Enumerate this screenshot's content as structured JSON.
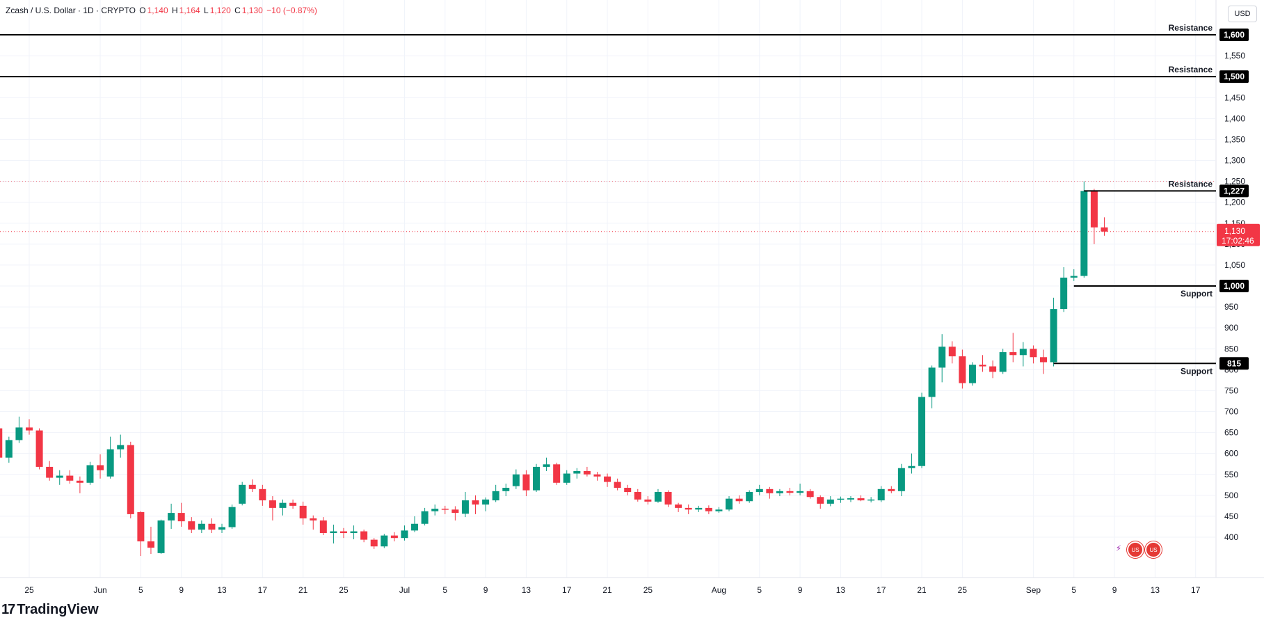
{
  "header": {
    "symbol": "Zcash / U.S. Dollar · 1D · CRYPTO",
    "open_label": "O",
    "open": "1,140",
    "high_label": "H",
    "high": "1,164",
    "low_label": "L",
    "low": "1,120",
    "close_label": "C",
    "close": "1,130",
    "change": "−10 (−0.87%)",
    "currency": "USD"
  },
  "brand": {
    "mark": "17",
    "name": "TradingView"
  },
  "events": [
    {
      "icon": "lightning-icon",
      "kind": "earnings"
    },
    {
      "icon": "us-flag-icon",
      "kind": "economic"
    },
    {
      "icon": "us-flag-icon",
      "kind": "economic"
    }
  ],
  "colors": {
    "up": "#089981",
    "down": "#f23645",
    "grid": "#f0f3fa",
    "text": "#131722",
    "price_line": "#f23645",
    "level_line": "#000000"
  },
  "chart_data": {
    "type": "candlestick",
    "title": "Zcash / U.S. Dollar · 1D · CRYPTO",
    "ylim": [
      360,
      1660
    ],
    "y_ticks": [
      400,
      450,
      500,
      550,
      600,
      650,
      700,
      750,
      800,
      850,
      900,
      950,
      1000,
      1050,
      1100,
      1150,
      1200,
      1250,
      1300,
      1350,
      1400,
      1450,
      1500,
      1550,
      1600
    ],
    "x_ticks": [
      {
        "label": "25",
        "date": "2025-05-25"
      },
      {
        "label": "Jun",
        "date": "2025-06-01"
      },
      {
        "label": "5",
        "date": "2025-06-05"
      },
      {
        "label": "9",
        "date": "2025-06-09"
      },
      {
        "label": "13",
        "date": "2025-06-13"
      },
      {
        "label": "17",
        "date": "2025-06-17"
      },
      {
        "label": "21",
        "date": "2025-06-21"
      },
      {
        "label": "25",
        "date": "2025-06-25"
      },
      {
        "label": "Jul",
        "date": "2025-07-01"
      },
      {
        "label": "5",
        "date": "2025-07-05"
      },
      {
        "label": "9",
        "date": "2025-07-09"
      },
      {
        "label": "13",
        "date": "2025-07-13"
      },
      {
        "label": "17",
        "date": "2025-07-17"
      },
      {
        "label": "21",
        "date": "2025-07-21"
      },
      {
        "label": "25",
        "date": "2025-07-25"
      },
      {
        "label": "Aug",
        "date": "2025-08-01"
      },
      {
        "label": "5",
        "date": "2025-08-05"
      },
      {
        "label": "9",
        "date": "2025-08-09"
      },
      {
        "label": "13",
        "date": "2025-08-13"
      },
      {
        "label": "17",
        "date": "2025-08-17"
      },
      {
        "label": "21",
        "date": "2025-08-21"
      },
      {
        "label": "25",
        "date": "2025-08-25"
      },
      {
        "label": "Sep",
        "date": "2025-09-01"
      },
      {
        "label": "5",
        "date": "2025-09-05"
      },
      {
        "label": "9",
        "date": "2025-09-09"
      },
      {
        "label": "13",
        "date": "2025-09-13"
      },
      {
        "label": "17",
        "date": "2025-09-17"
      }
    ],
    "candles": [
      {
        "date": "2025-05-22",
        "o": 660,
        "h": 668,
        "l": 585,
        "c": 590
      },
      {
        "date": "2025-05-23",
        "o": 590,
        "h": 640,
        "l": 578,
        "c": 632
      },
      {
        "date": "2025-05-24",
        "o": 632,
        "h": 688,
        "l": 625,
        "c": 662
      },
      {
        "date": "2025-05-25",
        "o": 662,
        "h": 682,
        "l": 645,
        "c": 655
      },
      {
        "date": "2025-05-26",
        "o": 655,
        "h": 660,
        "l": 562,
        "c": 568
      },
      {
        "date": "2025-05-27",
        "o": 568,
        "h": 582,
        "l": 535,
        "c": 542
      },
      {
        "date": "2025-05-28",
        "o": 542,
        "h": 560,
        "l": 525,
        "c": 547
      },
      {
        "date": "2025-05-29",
        "o": 547,
        "h": 560,
        "l": 528,
        "c": 535
      },
      {
        "date": "2025-05-30",
        "o": 535,
        "h": 545,
        "l": 505,
        "c": 530
      },
      {
        "date": "2025-05-31",
        "o": 530,
        "h": 580,
        "l": 525,
        "c": 572
      },
      {
        "date": "2025-06-01",
        "o": 572,
        "h": 598,
        "l": 540,
        "c": 560
      },
      {
        "date": "2025-06-02",
        "o": 545,
        "h": 640,
        "l": 540,
        "c": 610
      },
      {
        "date": "2025-06-03",
        "o": 610,
        "h": 645,
        "l": 590,
        "c": 620
      },
      {
        "date": "2025-06-04",
        "o": 620,
        "h": 628,
        "l": 445,
        "c": 455
      },
      {
        "date": "2025-06-05",
        "o": 460,
        "h": 462,
        "l": 355,
        "c": 390
      },
      {
        "date": "2025-06-06",
        "o": 390,
        "h": 425,
        "l": 360,
        "c": 375
      },
      {
        "date": "2025-06-07",
        "o": 362,
        "h": 442,
        "l": 360,
        "c": 440
      },
      {
        "date": "2025-06-08",
        "o": 440,
        "h": 480,
        "l": 420,
        "c": 458
      },
      {
        "date": "2025-06-09",
        "o": 458,
        "h": 482,
        "l": 425,
        "c": 438
      },
      {
        "date": "2025-06-10",
        "o": 438,
        "h": 448,
        "l": 410,
        "c": 418
      },
      {
        "date": "2025-06-11",
        "o": 418,
        "h": 440,
        "l": 410,
        "c": 432
      },
      {
        "date": "2025-06-12",
        "o": 432,
        "h": 445,
        "l": 410,
        "c": 418
      },
      {
        "date": "2025-06-13",
        "o": 418,
        "h": 432,
        "l": 410,
        "c": 424
      },
      {
        "date": "2025-06-14",
        "o": 424,
        "h": 478,
        "l": 420,
        "c": 472
      },
      {
        "date": "2025-06-15",
        "o": 480,
        "h": 532,
        "l": 476,
        "c": 525
      },
      {
        "date": "2025-06-16",
        "o": 525,
        "h": 538,
        "l": 508,
        "c": 515
      },
      {
        "date": "2025-06-17",
        "o": 515,
        "h": 525,
        "l": 475,
        "c": 488
      },
      {
        "date": "2025-06-18",
        "o": 488,
        "h": 498,
        "l": 440,
        "c": 470
      },
      {
        "date": "2025-06-19",
        "o": 470,
        "h": 490,
        "l": 452,
        "c": 482
      },
      {
        "date": "2025-06-20",
        "o": 482,
        "h": 490,
        "l": 468,
        "c": 475
      },
      {
        "date": "2025-06-21",
        "o": 475,
        "h": 485,
        "l": 430,
        "c": 445
      },
      {
        "date": "2025-06-22",
        "o": 445,
        "h": 452,
        "l": 418,
        "c": 440
      },
      {
        "date": "2025-06-23",
        "o": 440,
        "h": 448,
        "l": 405,
        "c": 410
      },
      {
        "date": "2025-06-24",
        "o": 410,
        "h": 430,
        "l": 385,
        "c": 414
      },
      {
        "date": "2025-06-25",
        "o": 414,
        "h": 422,
        "l": 398,
        "c": 410
      },
      {
        "date": "2025-06-26",
        "o": 410,
        "h": 428,
        "l": 395,
        "c": 414
      },
      {
        "date": "2025-06-27",
        "o": 414,
        "h": 418,
        "l": 388,
        "c": 394
      },
      {
        "date": "2025-06-28",
        "o": 394,
        "h": 398,
        "l": 372,
        "c": 378
      },
      {
        "date": "2025-06-29",
        "o": 378,
        "h": 408,
        "l": 374,
        "c": 404
      },
      {
        "date": "2025-06-30",
        "o": 404,
        "h": 412,
        "l": 390,
        "c": 398
      },
      {
        "date": "2025-07-01",
        "o": 398,
        "h": 428,
        "l": 392,
        "c": 416
      },
      {
        "date": "2025-07-02",
        "o": 416,
        "h": 450,
        "l": 412,
        "c": 432
      },
      {
        "date": "2025-07-03",
        "o": 432,
        "h": 470,
        "l": 428,
        "c": 462
      },
      {
        "date": "2025-07-04",
        "o": 462,
        "h": 478,
        "l": 452,
        "c": 468
      },
      {
        "date": "2025-07-05",
        "o": 468,
        "h": 475,
        "l": 455,
        "c": 466
      },
      {
        "date": "2025-07-06",
        "o": 466,
        "h": 474,
        "l": 440,
        "c": 458
      },
      {
        "date": "2025-07-07",
        "o": 456,
        "h": 508,
        "l": 448,
        "c": 488
      },
      {
        "date": "2025-07-08",
        "o": 488,
        "h": 500,
        "l": 455,
        "c": 478
      },
      {
        "date": "2025-07-09",
        "o": 478,
        "h": 495,
        "l": 462,
        "c": 490
      },
      {
        "date": "2025-07-10",
        "o": 488,
        "h": 525,
        "l": 484,
        "c": 510
      },
      {
        "date": "2025-07-11",
        "o": 510,
        "h": 528,
        "l": 498,
        "c": 518
      },
      {
        "date": "2025-07-12",
        "o": 522,
        "h": 562,
        "l": 515,
        "c": 550
      },
      {
        "date": "2025-07-13",
        "o": 550,
        "h": 560,
        "l": 498,
        "c": 512
      },
      {
        "date": "2025-07-14",
        "o": 512,
        "h": 575,
        "l": 508,
        "c": 568
      },
      {
        "date": "2025-07-15",
        "o": 568,
        "h": 590,
        "l": 558,
        "c": 574
      },
      {
        "date": "2025-07-16",
        "o": 574,
        "h": 578,
        "l": 525,
        "c": 530
      },
      {
        "date": "2025-07-17",
        "o": 530,
        "h": 560,
        "l": 525,
        "c": 552
      },
      {
        "date": "2025-07-18",
        "o": 552,
        "h": 565,
        "l": 540,
        "c": 558
      },
      {
        "date": "2025-07-19",
        "o": 558,
        "h": 568,
        "l": 545,
        "c": 550
      },
      {
        "date": "2025-07-20",
        "o": 550,
        "h": 556,
        "l": 535,
        "c": 545
      },
      {
        "date": "2025-07-21",
        "o": 545,
        "h": 552,
        "l": 520,
        "c": 532
      },
      {
        "date": "2025-07-22",
        "o": 532,
        "h": 540,
        "l": 512,
        "c": 518
      },
      {
        "date": "2025-07-23",
        "o": 518,
        "h": 525,
        "l": 500,
        "c": 508
      },
      {
        "date": "2025-07-24",
        "o": 508,
        "h": 515,
        "l": 485,
        "c": 490
      },
      {
        "date": "2025-07-25",
        "o": 490,
        "h": 498,
        "l": 478,
        "c": 485
      },
      {
        "date": "2025-07-26",
        "o": 485,
        "h": 515,
        "l": 482,
        "c": 508
      },
      {
        "date": "2025-07-27",
        "o": 508,
        "h": 512,
        "l": 472,
        "c": 478
      },
      {
        "date": "2025-07-28",
        "o": 478,
        "h": 482,
        "l": 460,
        "c": 470
      },
      {
        "date": "2025-07-29",
        "o": 470,
        "h": 478,
        "l": 455,
        "c": 466
      },
      {
        "date": "2025-07-30",
        "o": 466,
        "h": 475,
        "l": 460,
        "c": 470
      },
      {
        "date": "2025-07-31",
        "o": 470,
        "h": 476,
        "l": 455,
        "c": 462
      },
      {
        "date": "2025-08-01",
        "o": 462,
        "h": 472,
        "l": 458,
        "c": 466
      },
      {
        "date": "2025-08-02",
        "o": 466,
        "h": 498,
        "l": 462,
        "c": 492
      },
      {
        "date": "2025-08-03",
        "o": 492,
        "h": 500,
        "l": 480,
        "c": 486
      },
      {
        "date": "2025-08-04",
        "o": 486,
        "h": 512,
        "l": 482,
        "c": 508
      },
      {
        "date": "2025-08-05",
        "o": 508,
        "h": 525,
        "l": 500,
        "c": 515
      },
      {
        "date": "2025-08-06",
        "o": 515,
        "h": 520,
        "l": 492,
        "c": 505
      },
      {
        "date": "2025-08-07",
        "o": 505,
        "h": 515,
        "l": 498,
        "c": 510
      },
      {
        "date": "2025-08-08",
        "o": 510,
        "h": 518,
        "l": 500,
        "c": 506
      },
      {
        "date": "2025-08-09",
        "o": 506,
        "h": 528,
        "l": 500,
        "c": 510
      },
      {
        "date": "2025-08-10",
        "o": 510,
        "h": 515,
        "l": 492,
        "c": 496
      },
      {
        "date": "2025-08-11",
        "o": 496,
        "h": 500,
        "l": 468,
        "c": 480
      },
      {
        "date": "2025-08-12",
        "o": 480,
        "h": 498,
        "l": 474,
        "c": 490
      },
      {
        "date": "2025-08-13",
        "o": 490,
        "h": 497,
        "l": 482,
        "c": 492
      },
      {
        "date": "2025-08-14",
        "o": 490,
        "h": 498,
        "l": 484,
        "c": 493
      },
      {
        "date": "2025-08-15",
        "o": 493,
        "h": 500,
        "l": 486,
        "c": 488
      },
      {
        "date": "2025-08-16",
        "o": 488,
        "h": 496,
        "l": 483,
        "c": 490
      },
      {
        "date": "2025-08-17",
        "o": 488,
        "h": 522,
        "l": 484,
        "c": 515
      },
      {
        "date": "2025-08-18",
        "o": 515,
        "h": 522,
        "l": 505,
        "c": 510
      },
      {
        "date": "2025-08-19",
        "o": 510,
        "h": 575,
        "l": 498,
        "c": 565
      },
      {
        "date": "2025-08-20",
        "o": 565,
        "h": 600,
        "l": 552,
        "c": 570
      },
      {
        "date": "2025-08-21",
        "o": 570,
        "h": 745,
        "l": 565,
        "c": 735
      },
      {
        "date": "2025-08-22",
        "o": 735,
        "h": 810,
        "l": 708,
        "c": 805
      },
      {
        "date": "2025-08-23",
        "o": 805,
        "h": 885,
        "l": 770,
        "c": 855
      },
      {
        "date": "2025-08-24",
        "o": 855,
        "h": 868,
        "l": 815,
        "c": 832
      },
      {
        "date": "2025-08-25",
        "o": 832,
        "h": 848,
        "l": 755,
        "c": 768
      },
      {
        "date": "2025-08-26",
        "o": 768,
        "h": 818,
        "l": 762,
        "c": 812
      },
      {
        "date": "2025-08-27",
        "o": 812,
        "h": 835,
        "l": 795,
        "c": 808
      },
      {
        "date": "2025-08-28",
        "o": 808,
        "h": 822,
        "l": 780,
        "c": 795
      },
      {
        "date": "2025-08-29",
        "o": 795,
        "h": 850,
        "l": 790,
        "c": 842
      },
      {
        "date": "2025-08-30",
        "o": 842,
        "h": 888,
        "l": 818,
        "c": 835
      },
      {
        "date": "2025-08-31",
        "o": 835,
        "h": 866,
        "l": 808,
        "c": 850
      },
      {
        "date": "2025-09-01",
        "o": 850,
        "h": 858,
        "l": 815,
        "c": 830
      },
      {
        "date": "2025-09-02",
        "o": 830,
        "h": 848,
        "l": 790,
        "c": 818
      },
      {
        "date": "2025-09-03",
        "o": 818,
        "h": 972,
        "l": 808,
        "c": 945
      },
      {
        "date": "2025-09-04",
        "o": 945,
        "h": 1045,
        "l": 938,
        "c": 1020
      },
      {
        "date": "2025-09-05",
        "o": 1020,
        "h": 1040,
        "l": 1012,
        "c": 1024
      },
      {
        "date": "2025-09-06",
        "o": 1024,
        "h": 1250,
        "l": 1020,
        "c": 1227
      },
      {
        "date": "2025-09-07",
        "o": 1227,
        "h": 1232,
        "l": 1100,
        "c": 1140
      },
      {
        "date": "2025-09-08",
        "o": 1140,
        "h": 1164,
        "l": 1120,
        "c": 1130
      }
    ],
    "levels": [
      {
        "price": 1600,
        "label": "Resistance",
        "value_label": "1,600",
        "from": "left"
      },
      {
        "price": 1500,
        "label": "Resistance",
        "value_label": "1,500",
        "from": "left"
      },
      {
        "price": 1227,
        "label": "Resistance",
        "value_label": "1,227",
        "from": "2025-09-06"
      },
      {
        "price": 1000,
        "label": "Support",
        "value_label": "1,000",
        "from": "2025-09-05"
      },
      {
        "price": 815,
        "label": "Support",
        "value_label": "815",
        "from": "2025-09-03"
      }
    ],
    "high_line": 1250,
    "last_price": {
      "value": 1130,
      "label": "1,130",
      "countdown": "17:02:46"
    }
  }
}
